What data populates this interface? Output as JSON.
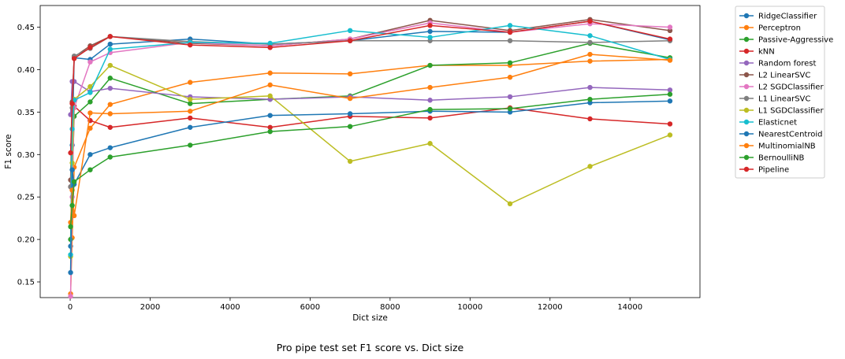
{
  "chart_data": {
    "type": "line",
    "xlabel": "Dict size",
    "ylabel": "F1 score",
    "caption": "Pro pipe test set F1 score vs. Dict size",
    "xlim": [
      -750,
      15750
    ],
    "ylim": [
      0.1315,
      0.4755
    ],
    "x_ticks": [
      0,
      2000,
      4000,
      6000,
      8000,
      10000,
      12000,
      14000
    ],
    "y_ticks": [
      0.15,
      0.2,
      0.25,
      0.3,
      0.35,
      0.4,
      0.45
    ],
    "legend_position": "outside-right",
    "x": [
      10,
      50,
      100,
      500,
      1000,
      3000,
      5000,
      7000,
      9000,
      11000,
      13000,
      15000
    ],
    "series": [
      {
        "name": "RidgeClassifier",
        "color": "#1f77b4",
        "values": [
          0.192,
          0.311,
          0.414,
          0.412,
          0.43,
          0.436,
          0.43,
          0.434,
          0.445,
          0.444,
          0.457,
          0.435
        ]
      },
      {
        "name": "Perceptron",
        "color": "#ff7f0e",
        "values": [
          0.136,
          0.202,
          0.285,
          0.331,
          0.359,
          0.385,
          0.396,
          0.395,
          0.405,
          0.405,
          0.41,
          0.412
        ]
      },
      {
        "name": "Passive-Aggressive",
        "color": "#2ca02c",
        "values": [
          0.2,
          0.268,
          0.345,
          0.362,
          0.39,
          0.36,
          0.365,
          0.369,
          0.405,
          0.408,
          0.431,
          0.414
        ]
      },
      {
        "name": "kNN",
        "color": "#d62728",
        "values": [
          0.262,
          0.263,
          0.357,
          0.34,
          0.332,
          0.343,
          0.332,
          0.345,
          0.343,
          0.355,
          0.342,
          0.336
        ]
      },
      {
        "name": "Random forest",
        "color": "#9467bd",
        "values": [
          0.347,
          0.386,
          0.386,
          0.374,
          0.378,
          0.368,
          0.365,
          0.368,
          0.364,
          0.368,
          0.379,
          0.376
        ]
      },
      {
        "name": "L2 LinearSVC",
        "color": "#8c564b",
        "values": [
          0.27,
          0.362,
          0.415,
          0.428,
          0.439,
          0.431,
          0.428,
          0.436,
          0.458,
          0.446,
          0.459,
          0.446
        ]
      },
      {
        "name": "L2 SGDClassifier",
        "color": "#e377c2",
        "values": [
          0.133,
          0.25,
          0.355,
          0.409,
          0.42,
          0.432,
          0.428,
          0.436,
          0.455,
          0.444,
          0.454,
          0.45
        ]
      },
      {
        "name": "L1 LinearSVC",
        "color": "#7f7f7f",
        "values": [
          0.262,
          0.355,
          0.416,
          0.425,
          0.439,
          0.433,
          0.43,
          0.434,
          0.434,
          0.434,
          0.432,
          0.434
        ]
      },
      {
        "name": "L1 SGDClassifier",
        "color": "#bcbd22",
        "values": [
          0.18,
          0.29,
          0.365,
          0.38,
          0.405,
          0.365,
          0.369,
          0.292,
          0.313,
          0.242,
          0.286,
          0.323
        ]
      },
      {
        "name": "Elasticnet",
        "color": "#17becf",
        "values": [
          0.182,
          0.33,
          0.364,
          0.373,
          0.424,
          0.432,
          0.431,
          0.446,
          0.438,
          0.452,
          0.44,
          0.412
        ]
      },
      {
        "name": "NearestCentroid",
        "color": "#1f77b4",
        "values": [
          0.161,
          0.282,
          0.265,
          0.3,
          0.308,
          0.332,
          0.346,
          0.348,
          0.351,
          0.35,
          0.361,
          0.363
        ]
      },
      {
        "name": "MultinomialNB",
        "color": "#ff7f0e",
        "values": [
          0.22,
          0.258,
          0.228,
          0.349,
          0.348,
          0.351,
          0.382,
          0.366,
          0.379,
          0.391,
          0.418,
          0.411
        ]
      },
      {
        "name": "BernoulliNB",
        "color": "#2ca02c",
        "values": [
          0.215,
          0.24,
          0.268,
          0.282,
          0.297,
          0.311,
          0.327,
          0.333,
          0.353,
          0.354,
          0.365,
          0.371
        ]
      },
      {
        "name": "Pipeline",
        "color": "#d62728",
        "values": [
          0.302,
          0.36,
          0.413,
          0.426,
          0.439,
          0.429,
          0.426,
          0.434,
          0.452,
          0.444,
          0.457,
          0.436
        ]
      }
    ]
  }
}
